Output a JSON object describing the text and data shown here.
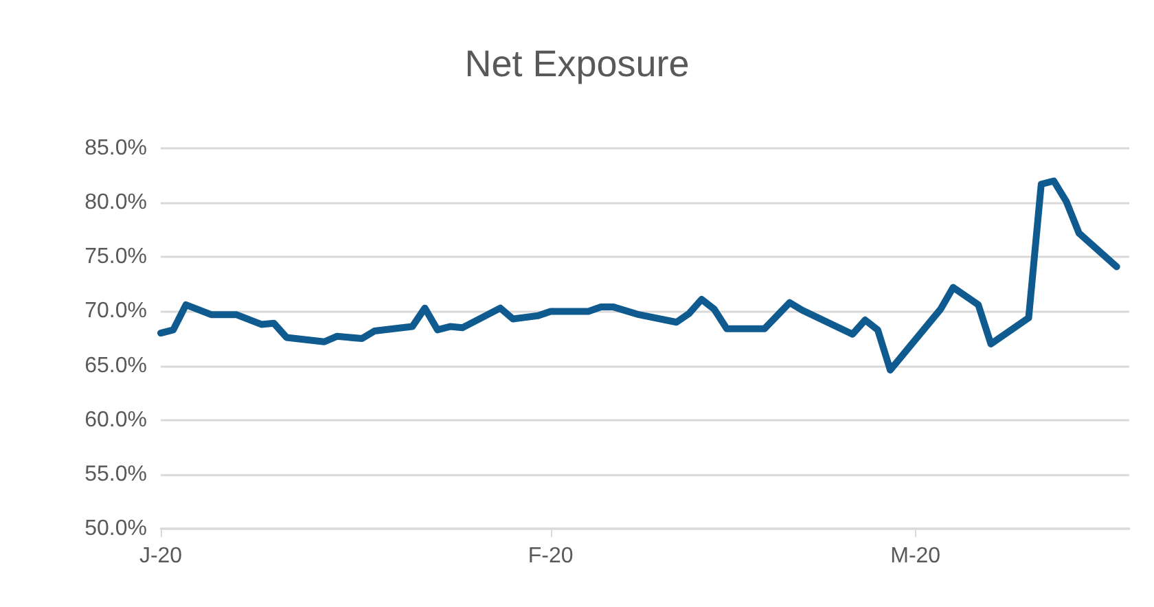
{
  "chart_data": {
    "type": "line",
    "title": "Net Exposure",
    "x": [
      "2020-01-01",
      "2020-01-02",
      "2020-01-03",
      "2020-01-05",
      "2020-01-07",
      "2020-01-09",
      "2020-01-10",
      "2020-01-11",
      "2020-01-14",
      "2020-01-15",
      "2020-01-17",
      "2020-01-18",
      "2020-01-21",
      "2020-01-22",
      "2020-01-23",
      "2020-01-24",
      "2020-01-25",
      "2020-01-28",
      "2020-01-29",
      "2020-01-31",
      "2020-02-01",
      "2020-02-04",
      "2020-02-05",
      "2020-02-06",
      "2020-02-08",
      "2020-02-11",
      "2020-02-12",
      "2020-02-13",
      "2020-02-14",
      "2020-02-15",
      "2020-02-18",
      "2020-02-20",
      "2020-02-21",
      "2020-02-25",
      "2020-02-26",
      "2020-02-27",
      "2020-02-28",
      "2020-03-03",
      "2020-03-04",
      "2020-03-06",
      "2020-03-07",
      "2020-03-10",
      "2020-03-11",
      "2020-03-12",
      "2020-03-13",
      "2020-03-14",
      "2020-03-17"
    ],
    "series": [
      {
        "color": "#0f5a8e",
        "values": [
          68.0,
          68.3,
          70.6,
          69.7,
          69.7,
          68.8,
          68.9,
          67.6,
          67.2,
          67.7,
          67.5,
          68.2,
          68.6,
          70.3,
          68.3,
          68.6,
          68.5,
          70.3,
          69.3,
          69.6,
          70.0,
          70.0,
          70.4,
          70.4,
          69.7,
          69.0,
          69.8,
          71.1,
          70.2,
          68.4,
          68.4,
          70.8,
          70.1,
          67.9,
          69.2,
          68.3,
          64.6,
          70.2,
          72.2,
          70.6,
          67.0,
          69.4,
          81.7,
          82.0,
          80.1,
          77.2,
          74.1
        ]
      }
    ],
    "xlim": [
      "2020-01-01",
      "2020-03-18"
    ],
    "xticks": [
      {
        "value": "2020-01-01",
        "label": "J-20"
      },
      {
        "value": "2020-02-01",
        "label": "F-20"
      },
      {
        "value": "2020-03-01",
        "label": "M-20"
      }
    ],
    "ylim": [
      50,
      85
    ],
    "yticks": [
      {
        "value": 50,
        "label": "50.0%"
      },
      {
        "value": 55,
        "label": "55.0%"
      },
      {
        "value": 60,
        "label": "60.0%"
      },
      {
        "value": 65,
        "label": "65.0%"
      },
      {
        "value": 70,
        "label": "70.0%"
      },
      {
        "value": 75,
        "label": "75.0%"
      },
      {
        "value": 80,
        "label": "80.0%"
      },
      {
        "value": 85,
        "label": "85.0%"
      }
    ],
    "grid": "y",
    "marker": "none",
    "line_style": "solid"
  }
}
